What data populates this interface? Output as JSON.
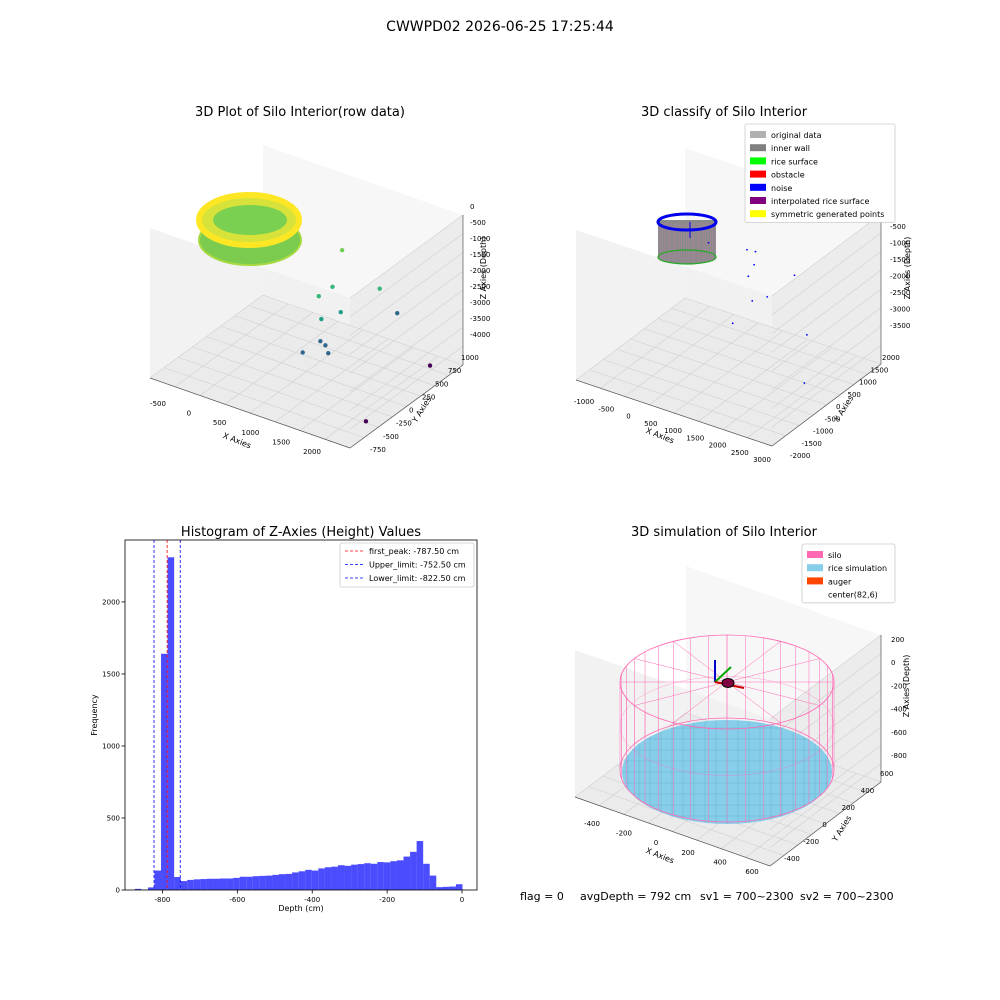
{
  "suptitle": "CWWPD02 2026-06-25 17:25:44",
  "footer": {
    "flag": "flag = 0",
    "avg": "avgDepth = 792 cm",
    "sv1": "sv1 = 700~2300",
    "sv2": "sv2 = 700~2300"
  },
  "chart_data": [
    {
      "type": "scatter",
      "title": "3D Plot of Silo Interior(row data)",
      "xlabel": "X Axies",
      "ylabel": "Y Axies",
      "zlabel": "Z Axies (Depth)",
      "x_ticks": [
        "-500",
        "0",
        "500",
        "1000",
        "1500",
        "2000"
      ],
      "y_ticks": [
        "-750",
        "-500",
        "-250",
        "0",
        "250",
        "500",
        "750",
        "1000"
      ],
      "z_ticks": [
        "0",
        "-500",
        "-1000",
        "-1500",
        "-2000",
        "-2500",
        "-3000",
        "-3500",
        "-4000"
      ],
      "colormap": [
        "#fde725",
        "#b5de2b",
        "#6ece58",
        "#35b779",
        "#1f9e89",
        "#31688e",
        "#440154"
      ],
      "series": [
        {
          "points": [
            {
              "x": 0,
              "y": 0,
              "z": -700
            },
            {
              "x": 1030,
              "y": 540,
              "z": -1030
            },
            {
              "x": 1020,
              "y": 390,
              "z": -1860
            },
            {
              "x": 1420,
              "y": 720,
              "z": -2040
            },
            {
              "x": 830,
              "y": 380,
              "z": -2230
            },
            {
              "x": 1200,
              "y": 320,
              "z": -2350
            },
            {
              "x": 970,
              "y": 260,
              "z": -2620
            },
            {
              "x": 1450,
              "y": 980,
              "z": -3000
            },
            {
              "x": 1060,
              "y": 140,
              "z": -3020
            },
            {
              "x": 1150,
              "y": 120,
              "z": -3050
            },
            {
              "x": 1200,
              "y": 110,
              "z": -3220
            },
            {
              "x": 890,
              "y": 40,
              "z": -3320
            },
            {
              "x": 2150,
              "y": 720,
              "z": -3660
            },
            {
              "x": 2100,
              "y": -300,
              "z": -4000
            }
          ]
        }
      ]
    },
    {
      "type": "scatter",
      "title": "3D classify of Silo Interior",
      "xlabel": "X Axies",
      "ylabel": "Y Axies",
      "zlabel": "Z Axies (Depth)",
      "x_ticks": [
        "-1000",
        "-500",
        "0",
        "500",
        "1000",
        "1500",
        "2000",
        "2500",
        "3000"
      ],
      "y_ticks": [
        "-2000",
        "-1500",
        "-1000",
        "-500",
        "0",
        "500",
        "1000",
        "1500",
        "2000"
      ],
      "z_ticks": [
        "-500",
        "-1000",
        "-1500",
        "-2000",
        "-2500",
        "-3000",
        "-3500"
      ],
      "legend": {
        "position": "upper right",
        "entries": [
          {
            "label": "original data",
            "color": "#b0b0b0"
          },
          {
            "label": "inner wall",
            "color": "#808080"
          },
          {
            "label": "rice surface",
            "color": "#00ff00"
          },
          {
            "label": "obstacle",
            "color": "#ff0000"
          },
          {
            "label": "noise",
            "color": "#0000ff"
          },
          {
            "label": "interpolated rice surface",
            "color": "#800080"
          },
          {
            "label": "symmetric generated points",
            "color": "#ffff00"
          }
        ]
      },
      "noise_points": [
        {
          "x": 400,
          "y": 200,
          "z": -1050
        },
        {
          "x": 1200,
          "y": 600,
          "z": -1150
        },
        {
          "x": 900,
          "y": 800,
          "z": -1300
        },
        {
          "x": 1000,
          "y": 900,
          "z": -1650
        },
        {
          "x": 1100,
          "y": 500,
          "z": -1700
        },
        {
          "x": 1600,
          "y": 1400,
          "z": -1900
        },
        {
          "x": 1300,
          "y": 300,
          "z": -2100
        },
        {
          "x": 1400,
          "y": 700,
          "z": -2150
        },
        {
          "x": 1100,
          "y": -100,
          "z": -2500
        },
        {
          "x": 2100,
          "y": 1000,
          "z": -2900
        },
        {
          "x": 2500,
          "y": 200,
          "z": -3500
        }
      ]
    },
    {
      "type": "bar",
      "title": "Histogram of Z-Axies (Height) Values",
      "xlabel": "Depth (cm)",
      "ylabel": "Frequency",
      "xlim": [
        -900,
        40
      ],
      "ylim": [
        0,
        2430
      ],
      "x_ticks": [
        -800,
        -600,
        -400,
        -200,
        0
      ],
      "y_ticks": [
        0,
        500,
        1000,
        1500,
        2000
      ],
      "bar_color": "#0000ff",
      "bar_opacity": 0.7,
      "bin_width": 17.5,
      "bins": [
        {
          "x": -865,
          "v": 8
        },
        {
          "x": -847.5,
          "v": 3
        },
        {
          "x": -830,
          "v": 18
        },
        {
          "x": -812.5,
          "v": 135
        },
        {
          "x": -795,
          "v": 1640
        },
        {
          "x": -777.5,
          "v": 2310
        },
        {
          "x": -760,
          "v": 90
        },
        {
          "x": -742.5,
          "v": 62
        },
        {
          "x": -725,
          "v": 70
        },
        {
          "x": -707.5,
          "v": 74
        },
        {
          "x": -690,
          "v": 76
        },
        {
          "x": -672.5,
          "v": 78
        },
        {
          "x": -655,
          "v": 78
        },
        {
          "x": -637.5,
          "v": 80
        },
        {
          "x": -620,
          "v": 80
        },
        {
          "x": -602.5,
          "v": 84
        },
        {
          "x": -585,
          "v": 92
        },
        {
          "x": -567.5,
          "v": 92
        },
        {
          "x": -550,
          "v": 96
        },
        {
          "x": -532.5,
          "v": 98
        },
        {
          "x": -515,
          "v": 100
        },
        {
          "x": -497.5,
          "v": 105
        },
        {
          "x": -480,
          "v": 110
        },
        {
          "x": -462.5,
          "v": 112
        },
        {
          "x": -445,
          "v": 122
        },
        {
          "x": -427.5,
          "v": 130
        },
        {
          "x": -410,
          "v": 140
        },
        {
          "x": -392.5,
          "v": 135
        },
        {
          "x": -375,
          "v": 150
        },
        {
          "x": -357.5,
          "v": 158
        },
        {
          "x": -340,
          "v": 162
        },
        {
          "x": -322.5,
          "v": 172
        },
        {
          "x": -305,
          "v": 168
        },
        {
          "x": -287.5,
          "v": 176
        },
        {
          "x": -270,
          "v": 180
        },
        {
          "x": -252.5,
          "v": 186
        },
        {
          "x": -235,
          "v": 182
        },
        {
          "x": -217.5,
          "v": 194
        },
        {
          "x": -200,
          "v": 192
        },
        {
          "x": -182.5,
          "v": 200
        },
        {
          "x": -165,
          "v": 206
        },
        {
          "x": -147.5,
          "v": 232
        },
        {
          "x": -130,
          "v": 265
        },
        {
          "x": -112.5,
          "v": 340
        },
        {
          "x": -95,
          "v": 182
        },
        {
          "x": -77.5,
          "v": 100
        },
        {
          "x": -60,
          "v": 20
        },
        {
          "x": -42.5,
          "v": 22
        },
        {
          "x": -25,
          "v": 24
        },
        {
          "x": -7.5,
          "v": 40
        }
      ],
      "lines": [
        {
          "x": -787.5,
          "label": "first_peak: -787.50 cm",
          "color": "#ff0000"
        },
        {
          "x": -752.5,
          "label": "Upper_limit: -752.50 cm",
          "color": "#0000ff"
        },
        {
          "x": -822.5,
          "label": "Lower_limit: -822.50 cm",
          "color": "#0000ff"
        }
      ],
      "legend": {
        "position": "upper right"
      }
    },
    {
      "type": "scatter",
      "title": "3D simulation of Silo Interior",
      "xlabel": "X Axies",
      "ylabel": "Y Axies",
      "zlabel": "Z Axies (Depth)",
      "x_ticks": [
        "-400",
        "-200",
        "0",
        "200",
        "400",
        "600"
      ],
      "y_ticks": [
        "-400",
        "-200",
        "0",
        "200",
        "400",
        "600"
      ],
      "z_ticks": [
        "200",
        "0",
        "-200",
        "-400",
        "-600",
        "-800"
      ],
      "center": {
        "x": 82,
        "y": 6
      },
      "rice_depth": -792,
      "legend": {
        "position": "upper right",
        "entries": [
          {
            "label": "silo",
            "color": "#ff69b4"
          },
          {
            "label": "rice simulation",
            "color": "#87ceeb"
          },
          {
            "label": "auger",
            "color": "#ff4500"
          },
          {
            "label": "center(82,6)",
            "color": ""
          }
        ]
      }
    }
  ]
}
